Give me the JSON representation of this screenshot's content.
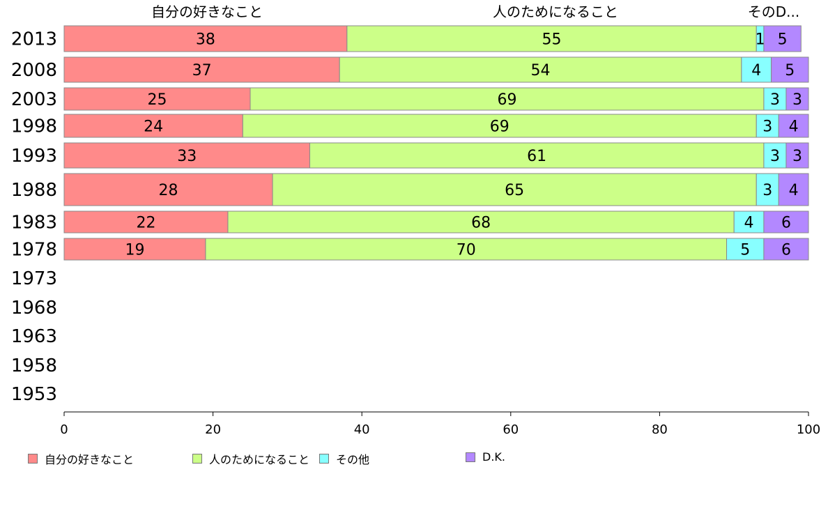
{
  "chart_data": {
    "type": "bar",
    "orientation": "horizontal",
    "stacked": true,
    "categories": [
      "2013",
      "2008",
      "2003",
      "1998",
      "1993",
      "1988",
      "1983",
      "1978",
      "1973",
      "1968",
      "1963",
      "1958",
      "1953"
    ],
    "column_headers": [
      "自分の好きなこと",
      "人のためになること",
      "そのD..."
    ],
    "series": [
      {
        "name": "自分の好きなこと",
        "color": "#ff8a8a",
        "values": [
          38,
          37,
          25,
          24,
          33,
          28,
          22,
          19,
          null,
          null,
          null,
          null,
          null
        ]
      },
      {
        "name": "人のためになること",
        "color": "#ccff88",
        "values": [
          55,
          54,
          69,
          69,
          61,
          65,
          68,
          70,
          null,
          null,
          null,
          null,
          null
        ]
      },
      {
        "name": "その他",
        "color": "#88ffff",
        "values": [
          1,
          4,
          3,
          3,
          3,
          3,
          4,
          5,
          null,
          null,
          null,
          null,
          null
        ]
      },
      {
        "name": "D.K.",
        "color": "#b388ff",
        "values": [
          5,
          5,
          3,
          4,
          3,
          4,
          6,
          6,
          null,
          null,
          null,
          null,
          null
        ]
      }
    ],
    "x_ticks": [
      "0",
      "20",
      "40",
      "60",
      "80",
      "100"
    ],
    "xlim": [
      0,
      100
    ],
    "legend_position": "bottom",
    "grid": false
  }
}
